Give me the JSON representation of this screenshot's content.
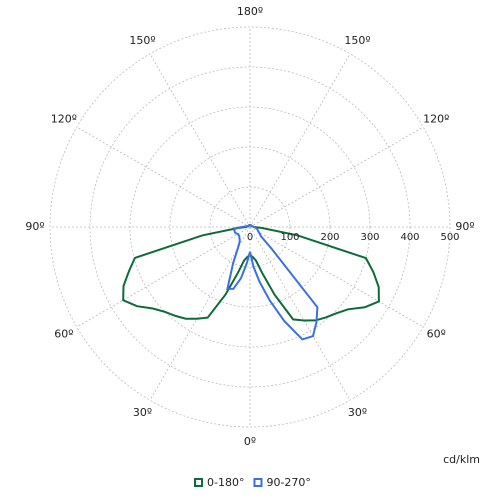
{
  "chart_data": {
    "type": "polar",
    "r_unit": "cd/klm",
    "rlim": [
      0,
      500
    ],
    "rticks": [
      0,
      100,
      200,
      300,
      400,
      500
    ],
    "thetaticks": [
      {
        "value": -150,
        "label": "150º"
      },
      {
        "value": -120,
        "label": "120º"
      },
      {
        "value": -90,
        "label": "90º"
      },
      {
        "value": -60,
        "label": "60º"
      },
      {
        "value": -30,
        "label": "30º"
      },
      {
        "value": 0,
        "label": "0º"
      },
      {
        "value": 30,
        "label": "30º"
      },
      {
        "value": 60,
        "label": "60º"
      },
      {
        "value": 90,
        "label": "90º"
      },
      {
        "value": 120,
        "label": "120º"
      },
      {
        "value": 150,
        "label": "150º"
      },
      {
        "value": 180,
        "label": "180º"
      }
    ],
    "grid": true,
    "x": [
      -180,
      -150,
      -120,
      -90,
      -85,
      -80,
      -75,
      -70,
      -65,
      -60,
      -55,
      -50,
      -45,
      -40,
      -35,
      -30,
      -25,
      -20,
      -15,
      -10,
      -5,
      0,
      5,
      10,
      15,
      20,
      25,
      30,
      35,
      40,
      45,
      50,
      55,
      60,
      65,
      70,
      75,
      80,
      85,
      90,
      120,
      150,
      180
    ],
    "series": [
      {
        "name": "0-180°",
        "color": "#0d6b3a",
        "values": [
          5,
          5,
          5,
          10,
          30,
          120,
          298,
          322,
          349,
          366,
          345,
          317,
          300,
          290,
          280,
          265,
          250,
          180,
          120,
          85,
          75,
          70,
          75,
          85,
          120,
          180,
          255,
          270,
          285,
          295,
          305,
          320,
          350,
          372,
          355,
          328,
          300,
          120,
          30,
          10,
          5,
          5,
          5
        ]
      },
      {
        "name": "90-270°",
        "color": "#3b6fe3",
        "values": [
          5,
          5,
          5,
          20,
          40,
          40,
          40,
          40,
          38,
          35,
          35,
          35,
          38,
          40,
          45,
          60,
          100,
          165,
          160,
          130,
          90,
          62,
          100,
          140,
          190,
          250,
          310,
          315,
          290,
          262,
          75,
          36,
          30,
          25,
          22,
          20,
          18,
          15,
          12,
          10,
          5,
          5,
          5
        ]
      }
    ]
  }
}
